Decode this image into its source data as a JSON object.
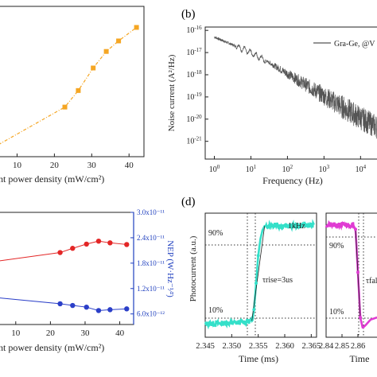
{
  "panel_labels": {
    "b": "(b)",
    "d": "(d)"
  },
  "colors": {
    "orange": "#f5a623",
    "red": "#e32626",
    "blue": "#2b3fc8",
    "gray": "#555555",
    "cyan": "#34e0c9",
    "magenta": "#e03bd3",
    "axis_blue": "#1f3fbf",
    "dotted": "#333333"
  },
  "chart_data": [
    {
      "id": "a",
      "type": "line",
      "xlabel": "ight power density (mW/cm²)",
      "x_ticks": [
        "10",
        "20",
        "30",
        "40"
      ],
      "xlim": [
        5,
        44
      ],
      "ylim": [
        0,
        1
      ],
      "series": [
        {
          "x": [
            5,
            22.8,
            26.4,
            30.4,
            33.9,
            37.2,
            42
          ],
          "values": [
            0.08,
            0.33,
            0.44,
            0.59,
            0.7,
            0.77,
            0.86
          ]
        }
      ]
    },
    {
      "id": "b",
      "type": "line",
      "xlabel": "Frequency (Hz)",
      "ylabel": "Noise current (A²/Hz)",
      "x_tick_base": "10",
      "x_tick_exps": [
        "0",
        "1",
        "2",
        "3",
        "4"
      ],
      "y_tick_base": "10",
      "y_tick_exps": [
        "-16",
        "-17",
        "-18",
        "-19",
        "-20",
        "-21"
      ],
      "xlim_log10": [
        -0.25,
        4.45
      ],
      "ylim_log10": [
        -21.8,
        -15.85
      ],
      "legend": {
        "label": "Gra-Ge, @V",
        "position": "top-right"
      },
      "series": [
        {
          "x_log10": [
            0,
            0.5,
            1,
            1.5,
            2,
            2.5,
            3,
            3.5,
            4,
            4.45
          ],
          "values_log10": [
            -16.3,
            -16.65,
            -17.0,
            -17.45,
            -17.95,
            -18.45,
            -18.95,
            -19.45,
            -19.95,
            -20.35
          ]
        }
      ]
    },
    {
      "id": "c",
      "type": "line",
      "xlabel": "ight power density (mW/cm²)",
      "y2label": "NEP (W·Hz⁻¹⁄²)",
      "x_ticks": [
        "10",
        "20",
        "30",
        "40"
      ],
      "y2_ticks": [
        "3.0x10⁻¹¹",
        "2.4x10⁻¹¹",
        "1.8x10⁻¹¹",
        "1.2x10⁻¹¹",
        "6.0x10⁻¹²"
      ],
      "y2_tick_values": [
        3e-11,
        2.4e-11,
        1.8e-11,
        1.2e-11,
        6e-12
      ],
      "xlim": [
        5,
        44
      ],
      "ylim": [
        3.5e-12,
        3e-11
      ],
      "series": [
        {
          "color": "red",
          "x": [
            5,
            22.8,
            26.4,
            30.4,
            33.9,
            37.2,
            42
          ],
          "values": [
            1.85e-11,
            2.05e-11,
            2.15e-11,
            2.25e-11,
            2.32e-11,
            2.28e-11,
            2.24e-11
          ]
        },
        {
          "color": "blue",
          "x": [
            5,
            22.8,
            26.4,
            30.4,
            33.9,
            37.2,
            42
          ],
          "values": [
            9.8e-12,
            8.4e-12,
            8e-12,
            7.6e-12,
            6.8e-12,
            7e-12,
            7.2e-12
          ]
        }
      ]
    },
    {
      "id": "d",
      "type": "line",
      "xlabel": "Time (ms)",
      "ylabel": "Photocurrent (a.u.)",
      "x_ticks": [
        "2.345",
        "2.350",
        "2.355",
        "2.360",
        "2.365"
      ],
      "xlim": [
        2.345,
        2.366
      ],
      "ylim": [
        0,
        1
      ],
      "legend": {
        "label": "1kHz",
        "position": "top-right"
      },
      "annotations": [
        "90%",
        "10%",
        "τrise=3us"
      ],
      "series": [
        {
          "x": [
            2.345,
            2.3508,
            2.3539,
            2.3542,
            2.3546,
            2.355,
            2.3554,
            2.3558,
            2.3562,
            2.3572,
            2.36,
            2.3655
          ],
          "values": [
            0.03,
            0.04,
            0.06,
            0.17,
            0.43,
            0.7,
            0.86,
            0.95,
            0.99,
            1.0,
            0.99,
            1.0
          ]
        }
      ]
    },
    {
      "id": "e",
      "type": "line",
      "xlabel": "Time",
      "x_ticks": [
        "2.84",
        "2.85",
        "2.86"
      ],
      "xlim": [
        2.84,
        2.872
      ],
      "ylim": [
        0,
        1
      ],
      "annotations": [
        "90%",
        "10%",
        "τfal"
      ],
      "series": [
        {
          "x": [
            2.84,
            2.857,
            2.8585,
            2.86,
            2.8615,
            2.863,
            2.865,
            2.868,
            2.872
          ],
          "values": [
            1.0,
            1.0,
            0.96,
            0.55,
            0.12,
            0.02,
            0.05,
            0.1,
            0.12
          ]
        }
      ]
    }
  ]
}
